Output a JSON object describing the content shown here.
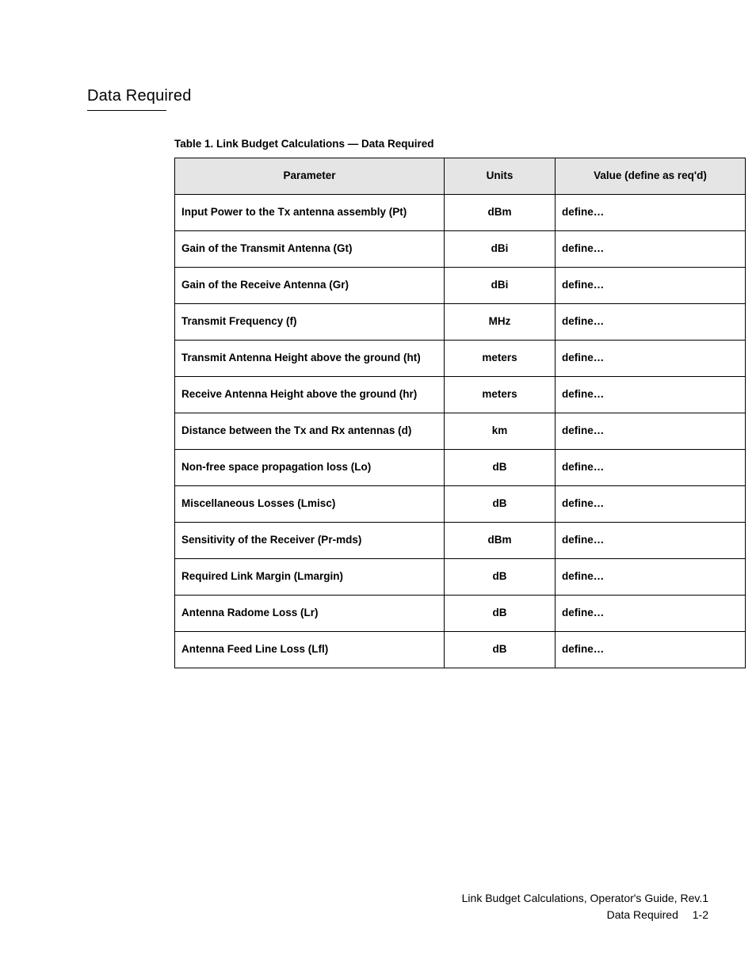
{
  "heading": "Data Required",
  "table_caption": "Table 1. Link Budget Calculations — Data Required",
  "table": {
    "columns": [
      "Parameter",
      "Units",
      "Value (define as req'd)"
    ],
    "rows": [
      {
        "param": "Input Power to the Tx antenna assembly (Pt)",
        "units": "dBm",
        "value": "define…"
      },
      {
        "param": "Gain of the Transmit Antenna (Gt)",
        "units": "dBi",
        "value": "define…"
      },
      {
        "param": "Gain of the Receive Antenna (Gr)",
        "units": "dBi",
        "value": "define…"
      },
      {
        "param": "Transmit Frequency (f)",
        "units": "MHz",
        "value": "define…"
      },
      {
        "param": "Transmit Antenna Height above the ground (ht)",
        "units": "meters",
        "value": "define…"
      },
      {
        "param": "Receive Antenna Height above the ground (hr)",
        "units": "meters",
        "value": "define…"
      },
      {
        "param": "Distance between the Tx and Rx antennas (d)",
        "units": "km",
        "value": "define…"
      },
      {
        "param": "Non-free space propagation loss (Lo)",
        "units": "dB",
        "value": "define…"
      },
      {
        "param": "Miscellaneous Losses (Lmisc)",
        "units": "dB",
        "value": "define…"
      },
      {
        "param": "Sensitivity of the Receiver (Pr-mds)",
        "units": "dBm",
        "value": "define…"
      },
      {
        "param": "Required Link Margin (Lmargin)",
        "units": "dB",
        "value": "define…"
      },
      {
        "param": "Antenna Radome Loss (Lr)",
        "units": "dB",
        "value": "define…"
      },
      {
        "param": "Antenna Feed Line Loss (Lfl)",
        "units": "dB",
        "value": "define…"
      }
    ]
  },
  "footer": {
    "line1": "Link Budget Calculations, Operator's Guide, Rev.1",
    "line2_label": "Data Required",
    "page_number": "1-2"
  },
  "styling": {
    "page_bg": "#ffffff",
    "text_color": "#000000",
    "header_bg": "#e5e5e5",
    "border_color": "#000000",
    "body_font_size_pt": 10,
    "heading_font_size_pt": 15,
    "caption_font_size_pt": 10,
    "footer_font_size_pt": 10.5
  }
}
